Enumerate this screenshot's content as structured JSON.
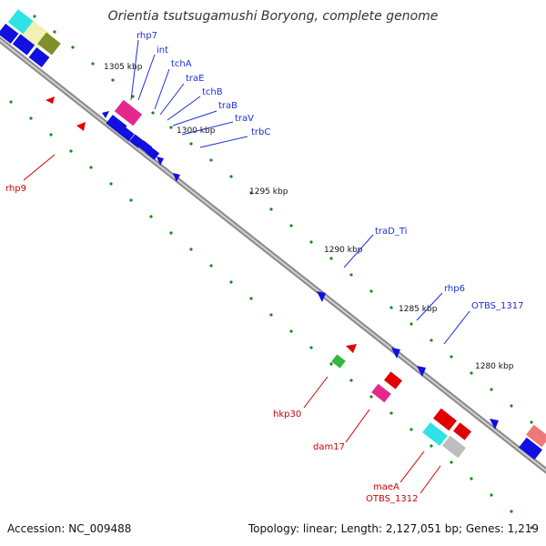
{
  "title": "Orientia tsutsugamushi Boryong, complete genome",
  "footer": {
    "accession": "Accession: NC_009488",
    "summary": "Topology: linear; Length: 2,127,051 bp; Genes: 1,219"
  },
  "ticks": [
    "1305 kbp",
    "1300 kbp",
    "1295 kbp",
    "1290 kbp",
    "1285 kbp",
    "1280 kbp"
  ],
  "forward_genes": [
    "rhp7",
    "int",
    "tchA",
    "traE",
    "tchB",
    "traB",
    "traV",
    "trbC",
    "traD_Ti",
    "rhp6",
    "OTBS_1317"
  ],
  "reverse_genes": [
    "rhp9",
    "hkp30",
    "dam17",
    "maeA",
    "OTBS_1312"
  ],
  "colors": {
    "forward_label": "#1d2fd6",
    "reverse_label": "#d00000",
    "backbone": "#888888",
    "gc_dots": "#1a8a1a"
  }
}
